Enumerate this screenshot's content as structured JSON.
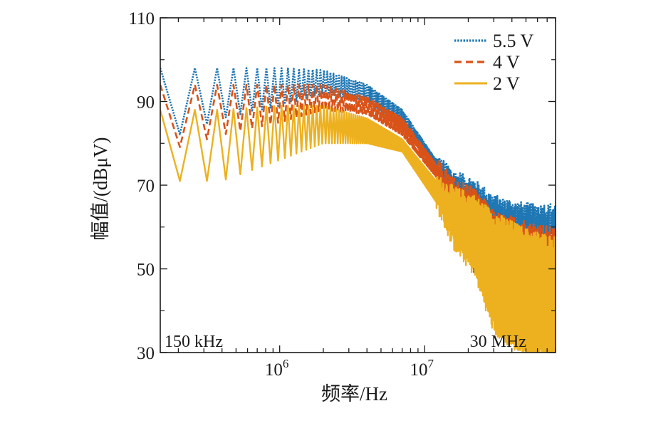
{
  "chart_data": {
    "type": "line",
    "title": "",
    "xlabel": "频率/Hz",
    "ylabel": "幅值/(dBμV)",
    "xscale": "log",
    "xlim": [
      150000,
      80000000
    ],
    "ylim": [
      30,
      110
    ],
    "yticks": [
      30,
      50,
      70,
      90,
      110
    ],
    "ytick_labels": [
      "30",
      "50",
      "70",
      "90",
      "110"
    ],
    "xtick_labels": [
      {
        "base": "10",
        "exp": "6",
        "value": 1000000
      },
      {
        "base": "10",
        "exp": "7",
        "value": 10000000
      }
    ],
    "legend_position": "top-right",
    "annotations": [
      {
        "text": "150 kHz",
        "x": 150000
      },
      {
        "text": "30 MHz",
        "x": 30000000
      }
    ],
    "series": [
      {
        "name": "5.5 V",
        "style": "dotted",
        "color": "#1f77b4",
        "peaks": [
          {
            "x": 150000,
            "y": 98
          },
          {
            "x": 200000,
            "y": 98
          },
          {
            "x": 400000,
            "y": 98
          },
          {
            "x": 1000000,
            "y": 98
          },
          {
            "x": 2000000,
            "y": 97.5
          },
          {
            "x": 4000000,
            "y": 94
          },
          {
            "x": 7000000,
            "y": 88
          },
          {
            "x": 12000000,
            "y": 76
          },
          {
            "x": 16000000,
            "y": 72
          },
          {
            "x": 22000000,
            "y": 70
          },
          {
            "x": 30000000,
            "y": 66
          },
          {
            "x": 50000000,
            "y": 64
          },
          {
            "x": 80000000,
            "y": 64
          }
        ],
        "troughs": [
          {
            "x": 150000,
            "y": 84
          },
          {
            "x": 200000,
            "y": 82
          },
          {
            "x": 400000,
            "y": 86
          },
          {
            "x": 1000000,
            "y": 89
          },
          {
            "x": 2000000,
            "y": 92
          },
          {
            "x": 4000000,
            "y": 90
          },
          {
            "x": 7000000,
            "y": 84
          },
          {
            "x": 12000000,
            "y": 74
          },
          {
            "x": 16000000,
            "y": 68
          },
          {
            "x": 22000000,
            "y": 50
          },
          {
            "x": 30000000,
            "y": 46
          },
          {
            "x": 50000000,
            "y": 58
          },
          {
            "x": 80000000,
            "y": 58
          }
        ]
      },
      {
        "name": "4 V",
        "style": "dashed",
        "color": "#d95319",
        "peaks": [
          {
            "x": 150000,
            "y": 94
          },
          {
            "x": 200000,
            "y": 94
          },
          {
            "x": 400000,
            "y": 94
          },
          {
            "x": 1000000,
            "y": 94
          },
          {
            "x": 2000000,
            "y": 94
          },
          {
            "x": 4000000,
            "y": 91
          },
          {
            "x": 7000000,
            "y": 86
          },
          {
            "x": 12000000,
            "y": 75
          },
          {
            "x": 16000000,
            "y": 70
          },
          {
            "x": 22000000,
            "y": 68
          },
          {
            "x": 30000000,
            "y": 62
          },
          {
            "x": 50000000,
            "y": 60
          },
          {
            "x": 80000000,
            "y": 58
          }
        ],
        "troughs": [
          {
            "x": 150000,
            "y": 82
          },
          {
            "x": 200000,
            "y": 79
          },
          {
            "x": 400000,
            "y": 82
          },
          {
            "x": 1000000,
            "y": 85
          },
          {
            "x": 2000000,
            "y": 88
          },
          {
            "x": 4000000,
            "y": 87
          },
          {
            "x": 7000000,
            "y": 82
          },
          {
            "x": 12000000,
            "y": 72
          },
          {
            "x": 16000000,
            "y": 64
          },
          {
            "x": 22000000,
            "y": 52
          },
          {
            "x": 30000000,
            "y": 38
          },
          {
            "x": 50000000,
            "y": 40
          },
          {
            "x": 80000000,
            "y": 40
          }
        ]
      },
      {
        "name": "2 V",
        "style": "solid",
        "color": "#edb120",
        "peaks": [
          {
            "x": 150000,
            "y": 88
          },
          {
            "x": 200000,
            "y": 88
          },
          {
            "x": 400000,
            "y": 88
          },
          {
            "x": 1000000,
            "y": 89
          },
          {
            "x": 2000000,
            "y": 89
          },
          {
            "x": 4000000,
            "y": 86
          },
          {
            "x": 7000000,
            "y": 81
          },
          {
            "x": 12000000,
            "y": 71
          },
          {
            "x": 16000000,
            "y": 68
          },
          {
            "x": 22000000,
            "y": 66
          },
          {
            "x": 30000000,
            "y": 62
          },
          {
            "x": 50000000,
            "y": 58
          },
          {
            "x": 80000000,
            "y": 56
          }
        ],
        "troughs": [
          {
            "x": 150000,
            "y": 74
          },
          {
            "x": 200000,
            "y": 71
          },
          {
            "x": 400000,
            "y": 71
          },
          {
            "x": 1000000,
            "y": 76
          },
          {
            "x": 2000000,
            "y": 80
          },
          {
            "x": 4000000,
            "y": 80
          },
          {
            "x": 7000000,
            "y": 78
          },
          {
            "x": 12000000,
            "y": 66
          },
          {
            "x": 16000000,
            "y": 56
          },
          {
            "x": 22000000,
            "y": 50
          },
          {
            "x": 30000000,
            "y": 36
          },
          {
            "x": 50000000,
            "y": 30
          },
          {
            "x": 80000000,
            "y": 30
          }
        ]
      }
    ]
  }
}
